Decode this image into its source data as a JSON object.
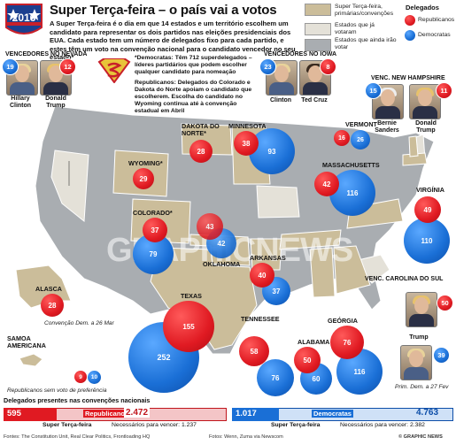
{
  "header": {
    "badge_year": "2016",
    "title": "Super Terça-feira – o país vai a votos",
    "intro": "A Super Terça-feira é o dia em que 14 estados e um território escolhem um candidato para representar os dois partidos nas eleições presidenciais dos EUA. Cada estado tem um número de delegados fixo para cada partido, e estes têm um voto na convenção nacional para o candidato vencedor no seu estado*"
  },
  "legend": {
    "items": [
      {
        "label": "Super Terça-feira, primárias/convenções",
        "color": "#cbbd9a"
      },
      {
        "label": "Estados que já votaram",
        "color": "#e4e1d8"
      },
      {
        "label": "Estados que ainda irão votar",
        "color": "#a9adb1"
      }
    ],
    "delegates_title": "Delegados",
    "republicans": "Republicanos",
    "democrats": "Democratas",
    "colors": {
      "republican": "#e01a22",
      "democrat": "#1a6fd6"
    }
  },
  "winners": {
    "nevada": {
      "title": "VENCEDORES NO NEVADA",
      "dem_count": "19",
      "rep_count": "12",
      "dem_name": "Hillary Clinton",
      "rep_name": "Donald Trump"
    },
    "iowa": {
      "title": "VENCEDORES NO IOWA",
      "dem_count": "23",
      "rep_count": "8",
      "dem_name": "Clinton",
      "rep_name": "Ted Cruz"
    },
    "new_hampshire": {
      "title": "VENC. NEW HAMPSHIRE",
      "dem_count": "15",
      "rep_count": "11",
      "dem_name": "Bernie Sanders",
      "rep_name": "Donald Trump"
    },
    "south_carolina": {
      "title": "VENC. CAROLINA DO SUL",
      "rep_count": "50",
      "dem_count": "39",
      "rep_name": "Trump",
      "note": "Prim. Dem. a 27 Fev"
    }
  },
  "notes": {
    "superdelegates": "*Democratas: Têm 712 superdelegados – líderes partidários que podem escolher qualquer candidato para nomeação",
    "republicans": "Republicanos: Delegados do Colorado e Dakota do Norte apoiam o candidato que escolherem. Escolha do candidato no Wyoming continua até à convenção estadual em Abril",
    "alaska_note": "Convenção Dem. a 26 Mar",
    "samoa_note": "Republicanos sem voto de preferência"
  },
  "states": [
    {
      "name": "DAKOTA DO NORTE*",
      "rep": "28",
      "dem": ""
    },
    {
      "name": "MINNESOTA",
      "rep": "38",
      "dem": "93"
    },
    {
      "name": "WYOMING*",
      "rep": "29",
      "dem": ""
    },
    {
      "name": "COLORADO*",
      "rep": "37",
      "dem": "79"
    },
    {
      "name": "OKLAHOMA",
      "rep": "43",
      "dem": "42"
    },
    {
      "name": "ARKANSAS",
      "rep": "40",
      "dem": "37"
    },
    {
      "name": "TEXAS",
      "rep": "155",
      "dem": "252"
    },
    {
      "name": "TENNESSEE",
      "rep": "58",
      "dem": "76"
    },
    {
      "name": "ALABAMA",
      "rep": "50",
      "dem": "60"
    },
    {
      "name": "GEÓRGIA",
      "rep": "76",
      "dem": "116"
    },
    {
      "name": "VIRGÍNIA",
      "rep": "49",
      "dem": "110"
    },
    {
      "name": "MASSACHUSETTS",
      "rep": "42",
      "dem": "116"
    },
    {
      "name": "VERMONT",
      "rep": "16",
      "dem": "26"
    },
    {
      "name": "ALASCA",
      "rep": "28",
      "dem": ""
    },
    {
      "name": "SAMOA AMERICANA",
      "rep": "9",
      "dem": "10"
    }
  ],
  "summary": {
    "title": "Delegados presentes nas convenções nacionais",
    "rep_total": "595",
    "rep_label": "Republicanos",
    "rep_needed_total": "2.472",
    "rep_super_label": "Super Terça-feira",
    "rep_needed_label": "Necessários para vencer: 1.237",
    "dem_total": "1.017",
    "dem_label": "Democratas",
    "dem_needed_total": "4.763",
    "dem_super_label": "Super Terça-feira",
    "dem_needed_label": "Necessários para vencer: 2.382",
    "rep_fill": 0.24,
    "dem_fill": 0.21
  },
  "credits": {
    "sources": "Fontes: The Constitution Unit, Real Clear Politics, Frontloading HQ",
    "pictures": "Fotos: Wenn, Zuma via Newscom",
    "brand": "© GRAPHIC NEWS"
  },
  "watermark": "GRAPHICNEWS"
}
